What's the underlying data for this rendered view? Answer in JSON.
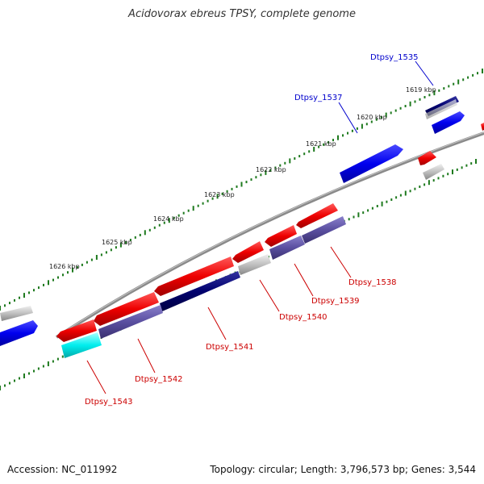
{
  "title": "Acidovorax ebreus TPSY, complete genome",
  "footer": {
    "accession": "Accession: NC_011992",
    "stats": "Topology: circular; Length: 3,796,573 bp; Genes: 3,544"
  },
  "scale_labels": [
    "1619 kbp",
    "1620 kbp",
    "1621 kbp",
    "1622 kbp",
    "1623 kbp",
    "1624 kbp",
    "1625 kbp",
    "1626 kbp"
  ],
  "gene_labels": {
    "forward": [
      "Dtpsy_1535",
      "Dtpsy_1537"
    ],
    "reverse": [
      "Dtpsy_1538",
      "Dtpsy_1539",
      "Dtpsy_1540",
      "Dtpsy_1541",
      "Dtpsy_1542",
      "Dtpsy_1543"
    ]
  },
  "colors": {
    "forward_label": "#0000cc",
    "reverse_label": "#cc0000",
    "backbone": "#808080",
    "tick": "#1e7a1e",
    "forward_gene": "#0000ee",
    "reverse_gene": "#ee0000",
    "dark_blue_gene": "#00006e",
    "slate_gene": "#5a4fa0",
    "cyan_gene": "#00eeee",
    "gray_gene": "#b8b8b8"
  }
}
